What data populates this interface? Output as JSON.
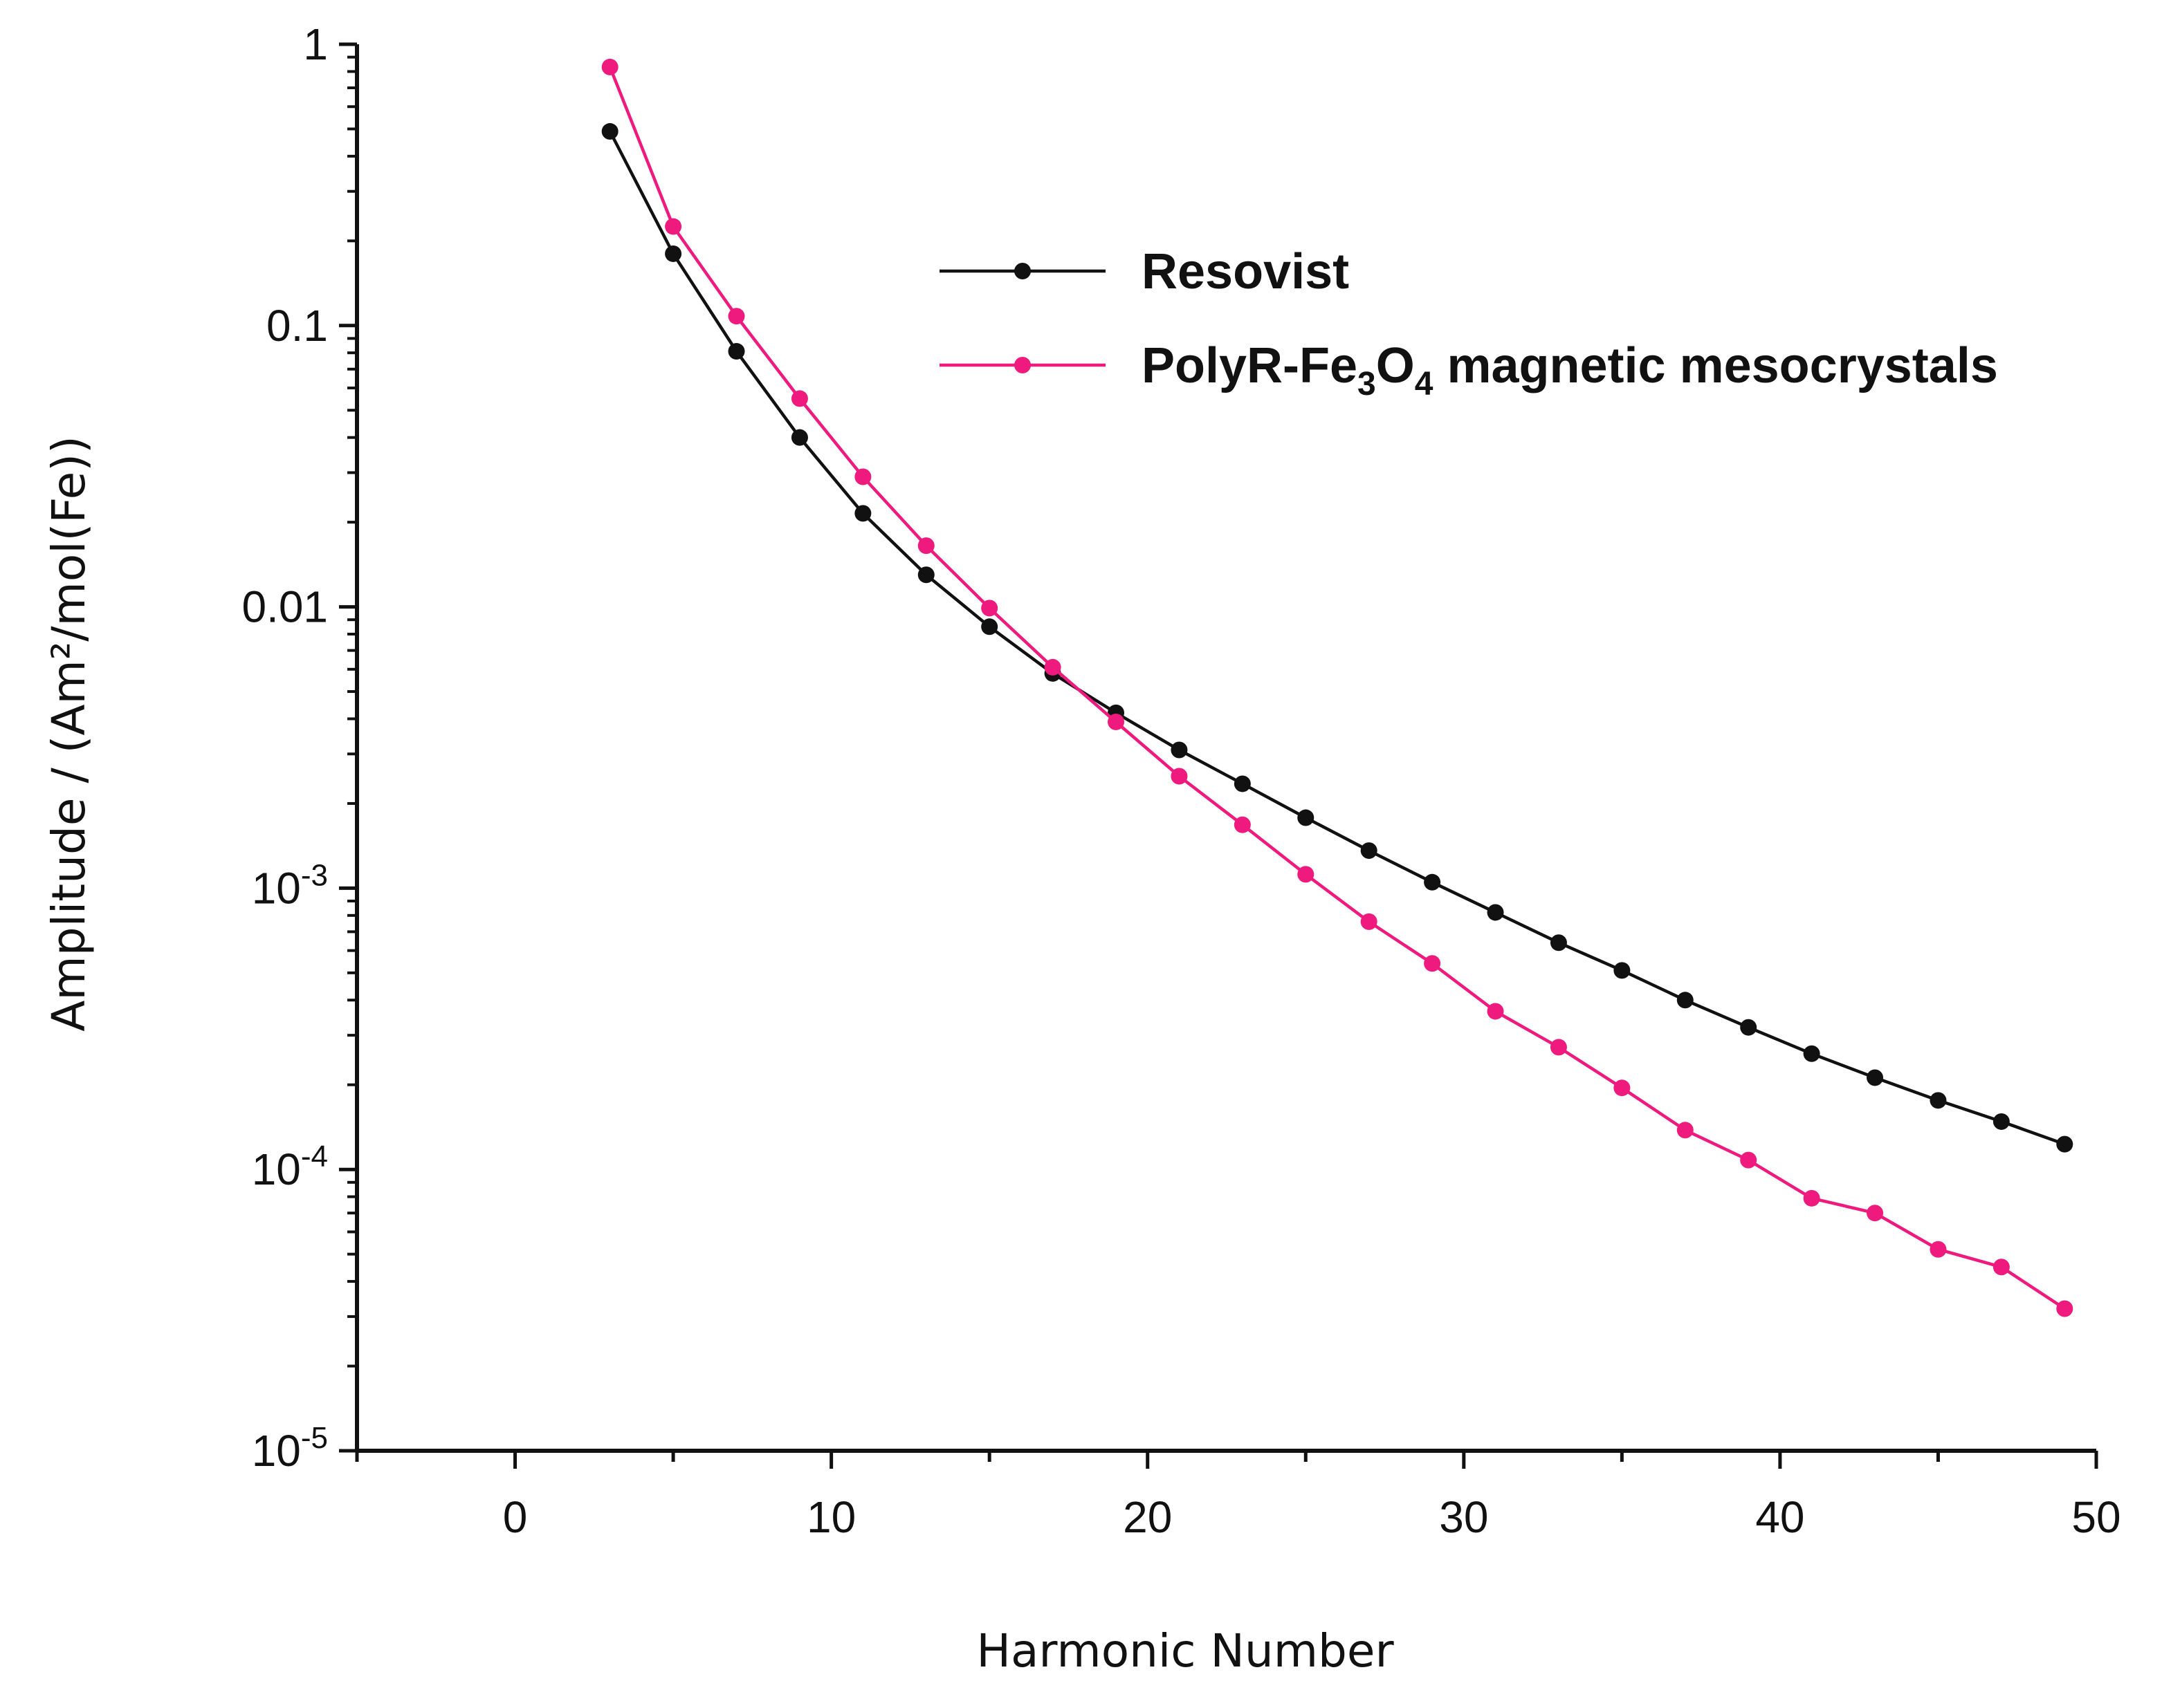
{
  "chart_data": {
    "type": "line",
    "title": "",
    "xlabel": "Harmonic Number",
    "ylabel": "Amplitude / (Am²/mol(Fe))",
    "xlim": [
      -5,
      50
    ],
    "ylim": [
      1e-05,
      1
    ],
    "yscale": "log",
    "x_ticks": [
      0,
      10,
      20,
      30,
      40,
      50
    ],
    "x_tick_labels": [
      "0",
      "10",
      "20",
      "30",
      "40",
      "50"
    ],
    "y_ticks": [
      {
        "value": 1,
        "base": "1",
        "exp": ""
      },
      {
        "value": 0.1,
        "base": "0.1",
        "exp": ""
      },
      {
        "value": 0.01,
        "base": "0.01",
        "exp": ""
      },
      {
        "value": 0.001,
        "base": "10",
        "exp": "-3"
      },
      {
        "value": 0.0001,
        "base": "10",
        "exp": "-4"
      },
      {
        "value": 1e-05,
        "base": "10",
        "exp": "-5"
      }
    ],
    "x": [
      3,
      5,
      7,
      9,
      11,
      13,
      15,
      17,
      19,
      21,
      23,
      25,
      27,
      29,
      31,
      33,
      35,
      37,
      39,
      41,
      43,
      45,
      47,
      49
    ],
    "series": [
      {
        "name": "Resovist",
        "color": "#111111",
        "values": [
          0.49,
          0.18,
          0.081,
          0.04,
          0.0215,
          0.013,
          0.0085,
          0.0058,
          0.0042,
          0.0031,
          0.00235,
          0.00178,
          0.00136,
          0.00105,
          0.00082,
          0.00064,
          0.00051,
          0.0004,
          0.00032,
          0.000258,
          0.000212,
          0.000176,
          0.000148,
          0.000123
        ]
      },
      {
        "name": "PolyR-Fe3O4 magnetic mesocrystals",
        "color": "#ee1a7d",
        "values": [
          0.83,
          0.225,
          0.108,
          0.055,
          0.029,
          0.0165,
          0.0099,
          0.0061,
          0.0039,
          0.0025,
          0.00168,
          0.00112,
          0.00076,
          0.00054,
          0.000365,
          0.000272,
          0.000195,
          0.000138,
          0.000108,
          7.9e-05,
          7e-05,
          5.2e-05,
          4.5e-05,
          3.2e-05
        ]
      }
    ],
    "legend": {
      "position": "top-right",
      "entries": [
        {
          "label": "Resovist"
        },
        {
          "label_parts": [
            "PolyR-Fe",
            "3",
            "O",
            "4",
            " magnetic mesocrystals"
          ]
        }
      ]
    },
    "grid": false
  }
}
